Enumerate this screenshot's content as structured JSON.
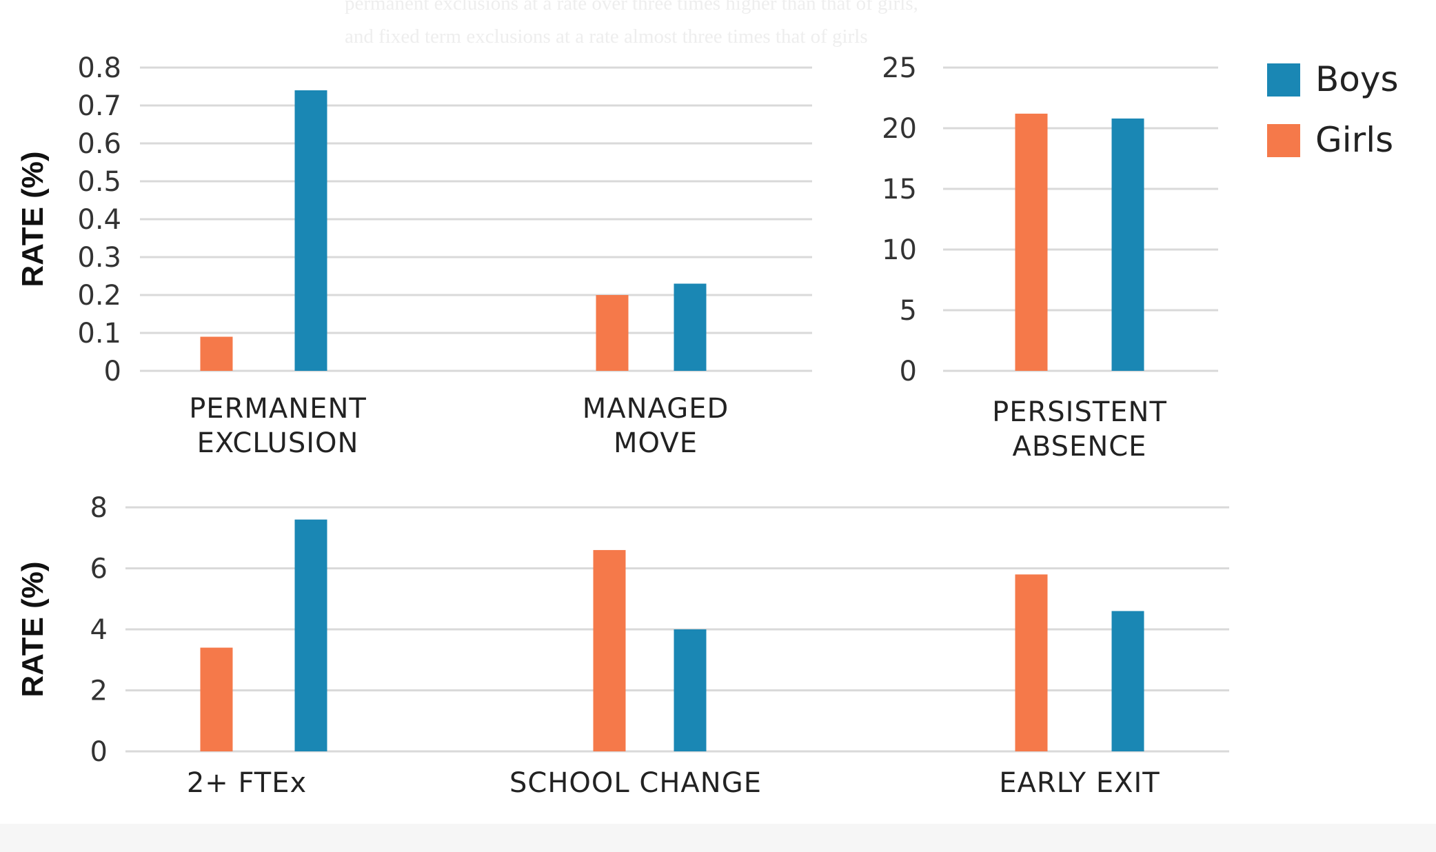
{
  "caption_lines": [
    "permanent exclusions at a rate over three times higher than that of girls,",
    "and fixed term exclusions at a rate almost three times that of girls"
  ],
  "colors": {
    "boys": "#1a87b4",
    "girls": "#f5794a",
    "grid": "#d9d9d9",
    "footer": "#f6f6f6"
  },
  "legend": [
    {
      "name": "Boys",
      "color": "#1a87b4"
    },
    {
      "name": "Girls",
      "color": "#f5794a"
    }
  ],
  "chart_data": [
    {
      "type": "bar",
      "ylabel": "RATE (%)",
      "ylim": [
        0,
        0.8
      ],
      "yticks": [
        "0",
        "0.1",
        "0.2",
        "0.3",
        "0.4",
        "0.5",
        "0.6",
        "0.7",
        "0.8"
      ],
      "categories": [
        [
          "PERMANENT",
          "EXCLUSION"
        ],
        [
          "MANAGED",
          "MOVE"
        ]
      ],
      "series": [
        {
          "name": "Girls",
          "values": [
            0.09,
            0.2
          ]
        },
        {
          "name": "Boys",
          "values": [
            0.74,
            0.23
          ]
        }
      ],
      "grid": true
    },
    {
      "type": "bar",
      "ylabel": "",
      "ylim": [
        0,
        25
      ],
      "yticks": [
        "0",
        "5",
        "10",
        "15",
        "20",
        "25"
      ],
      "categories": [
        [
          "PERSISTENT",
          "ABSENCE"
        ]
      ],
      "series": [
        {
          "name": "Girls",
          "values": [
            21.2
          ]
        },
        {
          "name": "Boys",
          "values": [
            20.8
          ]
        }
      ],
      "grid": true
    },
    {
      "type": "bar",
      "ylabel": "RATE (%)",
      "ylim": [
        0,
        8
      ],
      "yticks": [
        "0",
        "2",
        "4",
        "6",
        "8"
      ],
      "categories": [
        [
          "2+ FTEx"
        ],
        [
          "SCHOOL CHANGE"
        ],
        [
          "EARLY EXIT"
        ]
      ],
      "series": [
        {
          "name": "Girls",
          "values": [
            3.4,
            6.6,
            5.8
          ]
        },
        {
          "name": "Boys",
          "values": [
            7.6,
            4.0,
            4.6
          ]
        }
      ],
      "grid": true,
      "legend_position": "top-right"
    }
  ]
}
